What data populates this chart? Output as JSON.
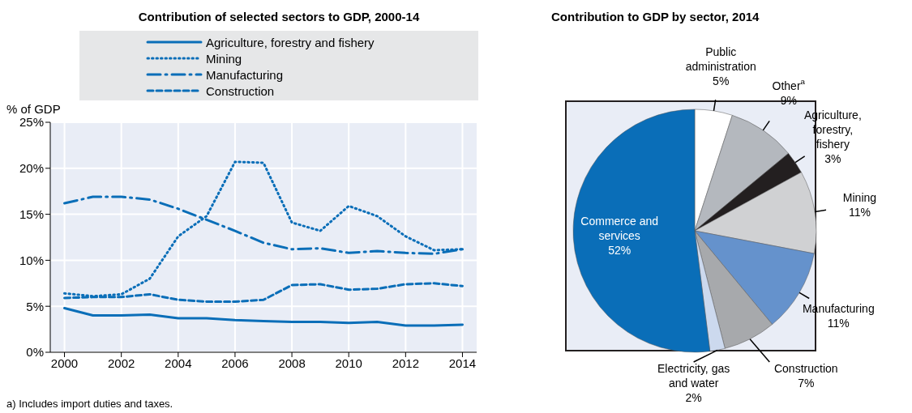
{
  "chart_data": [
    {
      "type": "line",
      "title": "Contribution of selected sectors to GDP, 2000-14",
      "ylabel": "% of GDP",
      "x": [
        2000,
        2001,
        2002,
        2003,
        2004,
        2005,
        2006,
        2007,
        2008,
        2009,
        2010,
        2011,
        2012,
        2013,
        2014
      ],
      "xlim": [
        1999.5,
        2014.5
      ],
      "xticks": [
        2000,
        2002,
        2004,
        2006,
        2008,
        2010,
        2012,
        2014
      ],
      "ylim": [
        0,
        25
      ],
      "yticks": [
        {
          "value": 0,
          "label": "0%"
        },
        {
          "value": 5,
          "label": "5%"
        },
        {
          "value": 10,
          "label": "10%"
        },
        {
          "value": 15,
          "label": "15%"
        },
        {
          "value": 20,
          "label": "20%"
        },
        {
          "value": 25,
          "label": "25%"
        }
      ],
      "grid": true,
      "legend": "top",
      "marker": "none",
      "series": [
        {
          "name": "Agriculture, forestry and fishery",
          "color": "#0a6eb8",
          "line_style": "solid",
          "values": [
            4.8,
            4.0,
            4.0,
            4.1,
            3.7,
            3.7,
            3.5,
            3.4,
            3.3,
            3.3,
            3.2,
            3.3,
            2.9,
            2.9,
            3.0
          ]
        },
        {
          "name": "Mining",
          "color": "#0a6eb8",
          "line_style": "dotted",
          "values": [
            6.4,
            6.1,
            6.3,
            8.0,
            12.6,
            14.8,
            20.7,
            20.6,
            14.1,
            13.2,
            15.9,
            14.8,
            12.6,
            11.1,
            11.2
          ]
        },
        {
          "name": "Manufacturing",
          "color": "#0a6eb8",
          "line_style": "dashdot",
          "values": [
            16.2,
            16.9,
            16.9,
            16.6,
            15.6,
            14.4,
            13.2,
            11.9,
            11.2,
            11.3,
            10.8,
            11.0,
            10.8,
            10.7,
            11.2
          ]
        },
        {
          "name": "Construction",
          "color": "#0a6eb8",
          "line_style": "dashed",
          "values": [
            5.9,
            6.0,
            6.0,
            6.3,
            5.7,
            5.5,
            5.5,
            5.7,
            7.3,
            7.4,
            6.8,
            6.9,
            7.4,
            7.5,
            7.2
          ]
        }
      ],
      "annotations": [
        "a) Includes import duties and taxes."
      ]
    },
    {
      "type": "pie",
      "title": "Contribution to GDP by sector, 2014",
      "categories": [
        "Public administration",
        "Other$^{a}$",
        "Agriculture, forestry, fishery",
        "Mining",
        "Manufacturing",
        "Construction",
        "Electricity, gas and water",
        "Commerce and services"
      ],
      "values": [
        5,
        9,
        3,
        11,
        11,
        7,
        2,
        52
      ],
      "colors": [
        "#ffffff",
        "#b4b8be",
        "#231f20",
        "#d0d1d3",
        "#6592cc",
        "#a7a9ac",
        "#ccd9ee",
        "#0a6eb8"
      ],
      "value_labels": [
        "5%",
        "9%",
        "3%",
        "11%",
        "11%",
        "7%",
        "2%",
        "52%"
      ]
    }
  ]
}
